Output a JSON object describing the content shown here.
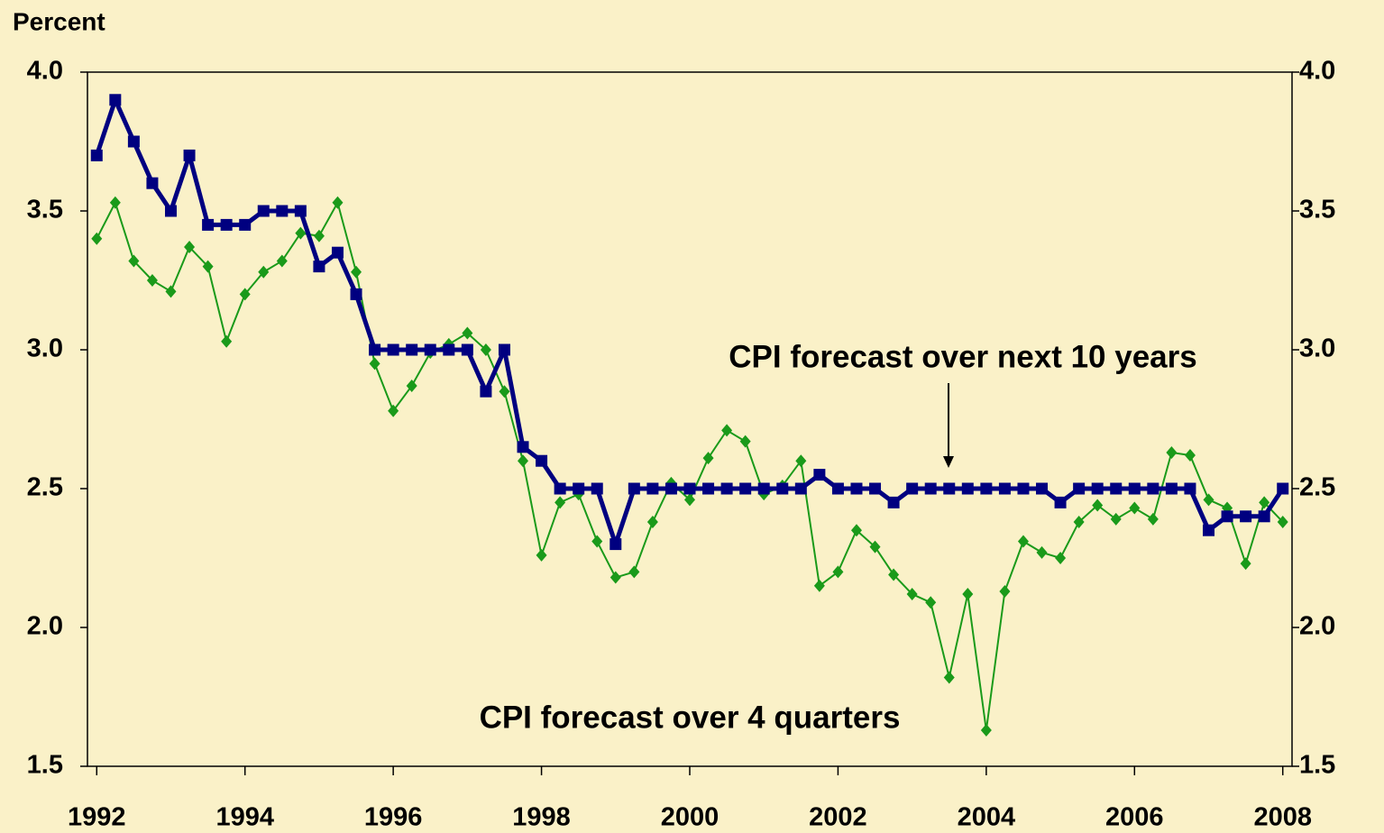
{
  "chart_data": {
    "type": "line",
    "y_label": "Percent",
    "annotations": [
      "CPI forecast over next 10 years",
      "CPI forecast over 4 quarters"
    ],
    "x": [
      1992,
      1992.25,
      1992.5,
      1992.75,
      1993,
      1993.25,
      1993.5,
      1993.75,
      1994,
      1994.25,
      1994.5,
      1994.75,
      1995,
      1995.25,
      1995.5,
      1995.75,
      1996,
      1996.25,
      1996.5,
      1996.75,
      1997,
      1997.25,
      1997.5,
      1997.75,
      1998,
      1998.25,
      1998.5,
      1998.75,
      1999,
      1999.25,
      1999.5,
      1999.75,
      2000,
      2000.25,
      2000.5,
      2000.75,
      2001,
      2001.25,
      2001.5,
      2001.75,
      2002,
      2002.25,
      2002.5,
      2002.75,
      2003,
      2003.25,
      2003.5,
      2003.75,
      2004,
      2004.25,
      2004.5,
      2004.75,
      2005,
      2005.25,
      2005.5,
      2005.75,
      2006,
      2006.25,
      2006.5,
      2006.75,
      2007,
      2007.25,
      2007.5,
      2007.75,
      2008
    ],
    "series": [
      {
        "name": "CPI forecast over next 10 years",
        "color": "#000080",
        "marker": "square",
        "values": [
          3.7,
          3.9,
          3.75,
          3.6,
          3.5,
          3.7,
          3.45,
          3.45,
          3.45,
          3.5,
          3.5,
          3.5,
          3.3,
          3.35,
          3.2,
          3.0,
          3.0,
          3.0,
          3.0,
          3.0,
          3.0,
          2.85,
          3.0,
          2.65,
          2.6,
          2.5,
          2.5,
          2.5,
          2.3,
          2.5,
          2.5,
          2.5,
          2.5,
          2.5,
          2.5,
          2.5,
          2.5,
          2.5,
          2.5,
          2.55,
          2.5,
          2.5,
          2.5,
          2.45,
          2.5,
          2.5,
          2.5,
          2.5,
          2.5,
          2.5,
          2.5,
          2.5,
          2.45,
          2.5,
          2.5,
          2.5,
          2.5,
          2.5,
          2.5,
          2.5,
          2.35,
          2.4,
          2.4,
          2.4,
          2.5
        ]
      },
      {
        "name": "CPI forecast over 4 quarters",
        "color": "#1a9a1a",
        "marker": "diamond",
        "values": [
          3.4,
          3.53,
          3.32,
          3.25,
          3.21,
          3.37,
          3.3,
          3.03,
          3.2,
          3.28,
          3.32,
          3.42,
          3.41,
          3.53,
          3.28,
          2.95,
          2.78,
          2.87,
          2.99,
          3.02,
          3.06,
          3.0,
          2.85,
          2.6,
          2.26,
          2.45,
          2.48,
          2.31,
          2.18,
          2.2,
          2.38,
          2.52,
          2.46,
          2.61,
          2.71,
          2.67,
          2.48,
          2.51,
          2.6,
          2.15,
          2.2,
          2.35,
          2.29,
          2.19,
          2.12,
          2.09,
          1.82,
          2.12,
          1.63,
          2.13,
          2.31,
          2.27,
          2.25,
          2.38,
          2.44,
          2.39,
          2.43,
          2.39,
          2.63,
          2.62,
          2.46,
          2.43,
          2.23,
          2.45,
          2.38
        ]
      }
    ],
    "xlim": [
      1991.875,
      2008.125
    ],
    "xticks": [
      1992,
      1994,
      1996,
      1998,
      2000,
      2002,
      2004,
      2006,
      2008
    ],
    "ylim": [
      1.5,
      4.0
    ],
    "yticks": [
      {
        "value": 1.5,
        "label": "1.5"
      },
      {
        "value": 2.0,
        "label": "2.0"
      },
      {
        "value": 2.5,
        "label": "2.5"
      },
      {
        "value": 3.0,
        "label": "3.0"
      },
      {
        "value": 3.5,
        "label": "3.5"
      },
      {
        "value": 4.0,
        "label": "4.0"
      }
    ],
    "right_axis": true,
    "grid": false
  }
}
